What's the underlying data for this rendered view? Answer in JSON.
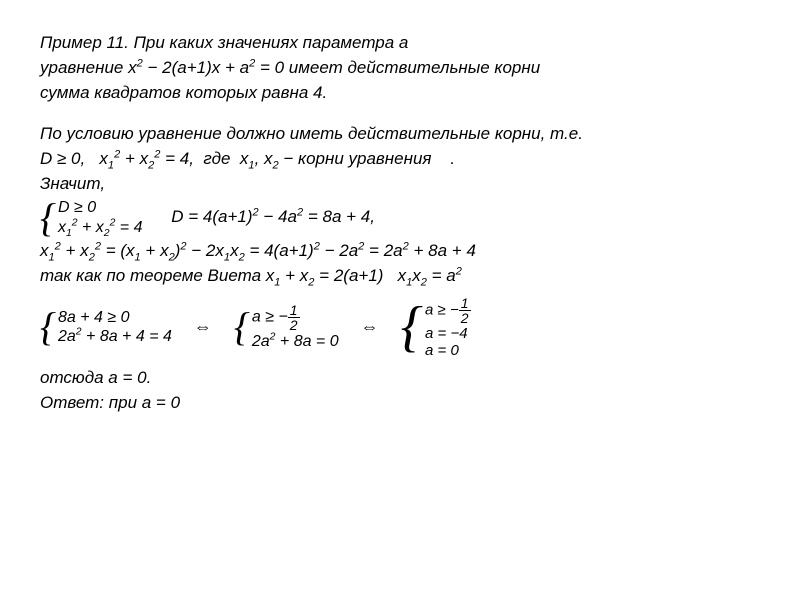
{
  "background_color": "#ffffff",
  "text_color": "#000000",
  "font_family": "Arial",
  "base_fontsize_pt": 13,
  "example_number": "11",
  "problem": {
    "l1": "Пример 11.   При каких значениях параметра a",
    "l2_pre": "уравнение ",
    "eq": "x² − 2(a+1)x + a² = 0",
    "l2_post": " имеет действительные корни",
    "l3": "сумма квадратов которых равна 4."
  },
  "sol": {
    "s1": "По условию уравнение должно иметь действительные корни, т.е.",
    "s2_a": "D ≥ 0,   ",
    "s2_b": "x₁² + x₂² = 4,  где  x₁, x₂ − корни уравнения     .",
    "s3": "Значит,",
    "sys1_r1": "D ≥ 0",
    "sys1_r2": "x₁² + x₂² = 4",
    "disc": "D = 4(a+1)² − 4a² = 8a + 4,",
    "s4": "x₁² + x₂² = (x₁ + x₂)² − 2x₁x₂ = 4(a+1)² − 2a² = 2a² + 8a + 4",
    "vieta_pre": "так как по теореме Виета ",
    "vieta_1": "x₁ + x₂ = 2(a+1)",
    "vieta_2": "x₁x₂ = a²",
    "sys2_r1": "8a + 4 ≥ 0",
    "sys2_r2": "2a² + 8a + 4 = 4",
    "sys3_r1_pre": "a ≥ −",
    "sys3_r2": "2a² + 8a = 0",
    "sys4_r1_pre": "a ≥ −",
    "sys4_r2": "a = −4",
    "sys4_r3": "a = 0",
    "frac_n": "1",
    "frac_d": "2",
    "arrow": "⇔",
    "ans1": "отсюда   a = 0.",
    "ans2": "Ответ: при a = 0"
  }
}
